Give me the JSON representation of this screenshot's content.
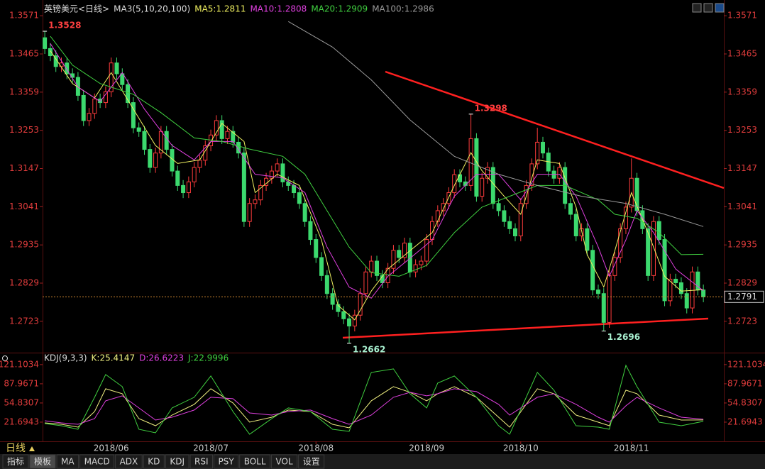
{
  "chart_data": [
    {
      "type": "candlestick",
      "title": "英镑美元<日线>",
      "subtitle": "MA3(5,10,20,100)",
      "up_color": "#ff3c3c",
      "down_color": "#3cd96e",
      "open": [
        1.351,
        1.348,
        1.346,
        1.343,
        1.344,
        1.341,
        1.34,
        1.335,
        1.328,
        1.33,
        1.334,
        1.333,
        1.336,
        1.344,
        1.341,
        1.338,
        1.333,
        1.326,
        1.325,
        1.32,
        1.315,
        1.319,
        1.325,
        1.32,
        1.314,
        1.31,
        1.308,
        1.311,
        1.315,
        1.317,
        1.321,
        1.324,
        1.328,
        1.323,
        1.325,
        1.322,
        1.319,
        1.3,
        1.305,
        1.306,
        1.31,
        1.312,
        1.314,
        1.316,
        1.311,
        1.31,
        1.308,
        1.305,
        1.3,
        1.295,
        1.29,
        1.285,
        1.28,
        1.277,
        1.275,
        1.273,
        1.271,
        1.274,
        1.28,
        1.286,
        1.289,
        1.285,
        1.283,
        1.287,
        1.292,
        1.29,
        1.294,
        1.286,
        1.288,
        1.289,
        1.295,
        1.3,
        1.303,
        1.305,
        1.308,
        1.313,
        1.311,
        1.31,
        1.323,
        1.307,
        1.312,
        1.315,
        1.305,
        1.303,
        1.3,
        1.298,
        1.296,
        1.305,
        1.31,
        1.316,
        1.322,
        1.319,
        1.314,
        1.312,
        1.315,
        1.305,
        1.302,
        1.296,
        1.298,
        1.292,
        1.281,
        1.28,
        1.272,
        1.285,
        1.29,
        1.298,
        1.304,
        1.312,
        1.303,
        1.298,
        1.285,
        1.3,
        1.295,
        1.278,
        1.284,
        1.283,
        1.28,
        1.276,
        1.286,
        1.281
      ],
      "high": [
        1.3528,
        1.3495,
        1.3475,
        1.3455,
        1.3455,
        1.3425,
        1.3415,
        1.3365,
        1.3315,
        1.3355,
        1.3355,
        1.3375,
        1.3455,
        1.3455,
        1.3425,
        1.3395,
        1.3345,
        1.3275,
        1.3265,
        1.3215,
        1.3205,
        1.3265,
        1.3265,
        1.3215,
        1.3155,
        1.3115,
        1.3125,
        1.3165,
        1.3185,
        1.3225,
        1.3255,
        1.3295,
        1.3295,
        1.3265,
        1.3265,
        1.3235,
        1.3205,
        1.3065,
        1.3075,
        1.3115,
        1.3135,
        1.3155,
        1.3175,
        1.3175,
        1.3125,
        1.3115,
        1.3095,
        1.3065,
        1.3015,
        1.2965,
        1.2915,
        1.2865,
        1.2815,
        1.2785,
        1.2765,
        1.2745,
        1.2755,
        1.2815,
        1.2875,
        1.2905,
        1.2905,
        1.2865,
        1.2885,
        1.2935,
        1.2935,
        1.2955,
        1.2955,
        1.2895,
        1.2905,
        1.2965,
        1.3015,
        1.3045,
        1.3065,
        1.3095,
        1.3145,
        1.3145,
        1.3125,
        1.3298,
        1.3245,
        1.3135,
        1.3165,
        1.3165,
        1.3065,
        1.3045,
        1.3015,
        1.2995,
        1.3065,
        1.3115,
        1.3175,
        1.326,
        1.3235,
        1.3205,
        1.3155,
        1.3165,
        1.3165,
        1.3065,
        1.3035,
        1.2995,
        1.2995,
        1.2935,
        1.2825,
        1.2815,
        1.2865,
        1.2915,
        1.2995,
        1.3055,
        1.3175,
        1.3135,
        1.3045,
        1.2995,
        1.3015,
        1.3015,
        1.2965,
        1.2855,
        1.2855,
        1.2845,
        1.2815,
        1.2875,
        1.2875,
        1.2825
      ],
      "low": [
        1.3465,
        1.3445,
        1.3415,
        1.3415,
        1.3395,
        1.3385,
        1.3335,
        1.3265,
        1.3265,
        1.3285,
        1.3315,
        1.3315,
        1.3345,
        1.3395,
        1.3365,
        1.3315,
        1.3245,
        1.3235,
        1.3185,
        1.3135,
        1.3135,
        1.3175,
        1.3185,
        1.3125,
        1.3085,
        1.3065,
        1.3065,
        1.3095,
        1.3135,
        1.3155,
        1.3195,
        1.3225,
        1.3215,
        1.3215,
        1.3205,
        1.3175,
        1.2985,
        1.2985,
        1.3035,
        1.3045,
        1.3085,
        1.3105,
        1.3125,
        1.3095,
        1.3085,
        1.3065,
        1.3035,
        1.2985,
        1.2935,
        1.2885,
        1.2835,
        1.2785,
        1.2755,
        1.2735,
        1.2715,
        1.2662,
        1.2695,
        1.2725,
        1.2785,
        1.2845,
        1.2835,
        1.2815,
        1.2815,
        1.2855,
        1.2885,
        1.2885,
        1.2845,
        1.2845,
        1.2865,
        1.2875,
        1.2935,
        1.2985,
        1.3015,
        1.3035,
        1.3065,
        1.3095,
        1.3085,
        1.3085,
        1.3055,
        1.3055,
        1.3105,
        1.3035,
        1.3015,
        1.2985,
        1.2965,
        1.2945,
        1.2945,
        1.3035,
        1.3085,
        1.3145,
        1.3175,
        1.3125,
        1.3105,
        1.3105,
        1.3035,
        1.3005,
        1.2945,
        1.2945,
        1.2905,
        1.2795,
        1.2785,
        1.2696,
        1.2705,
        1.2835,
        1.2885,
        1.2965,
        1.3025,
        1.3015,
        1.2965,
        1.2835,
        1.2835,
        1.2935,
        1.2765,
        1.2765,
        1.2815,
        1.2785,
        1.2745,
        1.2745,
        1.2795,
        1.2776
      ],
      "close": [
        1.348,
        1.346,
        1.343,
        1.344,
        1.341,
        1.34,
        1.335,
        1.328,
        1.33,
        1.334,
        1.333,
        1.336,
        1.344,
        1.341,
        1.338,
        1.333,
        1.326,
        1.325,
        1.32,
        1.315,
        1.319,
        1.325,
        1.32,
        1.314,
        1.31,
        1.308,
        1.311,
        1.315,
        1.317,
        1.321,
        1.324,
        1.328,
        1.323,
        1.325,
        1.322,
        1.319,
        1.3,
        1.305,
        1.306,
        1.31,
        1.312,
        1.314,
        1.316,
        1.311,
        1.31,
        1.308,
        1.305,
        1.3,
        1.295,
        1.29,
        1.285,
        1.28,
        1.277,
        1.275,
        1.273,
        1.271,
        1.274,
        1.28,
        1.286,
        1.289,
        1.285,
        1.283,
        1.287,
        1.292,
        1.29,
        1.294,
        1.286,
        1.288,
        1.289,
        1.295,
        1.3,
        1.303,
        1.305,
        1.308,
        1.313,
        1.311,
        1.31,
        1.323,
        1.307,
        1.312,
        1.315,
        1.305,
        1.303,
        1.3,
        1.298,
        1.296,
        1.305,
        1.31,
        1.316,
        1.322,
        1.319,
        1.314,
        1.312,
        1.315,
        1.305,
        1.302,
        1.296,
        1.298,
        1.292,
        1.281,
        1.28,
        1.272,
        1.285,
        1.29,
        1.298,
        1.304,
        1.312,
        1.303,
        1.298,
        1.285,
        1.3,
        1.295,
        1.278,
        1.284,
        1.283,
        1.28,
        1.276,
        1.286,
        1.281,
        1.2791
      ],
      "series": [
        {
          "name": "MA5:1.2811",
          "color": "#f0f060",
          "x": [
            1,
            5,
            9,
            12,
            16,
            20,
            24,
            28,
            32,
            36,
            38,
            42,
            46,
            50,
            53,
            56,
            59,
            62,
            66,
            70,
            74,
            77,
            79,
            83,
            86,
            89,
            93,
            96,
            98,
            101,
            103,
            106,
            109,
            112,
            115,
            119
          ],
          "values": [
            1.3474,
            1.3383,
            1.3343,
            1.3413,
            1.3312,
            1.3211,
            1.3161,
            1.3171,
            1.3272,
            1.3222,
            1.308,
            1.3131,
            1.31,
            1.2949,
            1.2767,
            1.2727,
            1.2807,
            1.2868,
            1.2919,
            1.2969,
            1.31,
            1.3191,
            1.3141,
            1.307,
            1.302,
            1.3171,
            1.3161,
            1.304,
            1.2908,
            1.2818,
            1.2919,
            1.308,
            1.2969,
            1.2848,
            1.2807,
            1.2811
          ]
        },
        {
          "name": "MA10:1.2808",
          "color": "#e040e0",
          "x": [
            1,
            6,
            10,
            14,
            18,
            23,
            27,
            30,
            34,
            38,
            43,
            47,
            51,
            55,
            59,
            62,
            66,
            70,
            74,
            78,
            82,
            86,
            89,
            93,
            96,
            100,
            102,
            105,
            107,
            110,
            114,
            119
          ],
          "values": [
            1.3494,
            1.3373,
            1.3333,
            1.3413,
            1.3312,
            1.3211,
            1.3171,
            1.3222,
            1.3222,
            1.3131,
            1.3121,
            1.308,
            1.2929,
            1.2818,
            1.2787,
            1.2848,
            1.2898,
            1.2949,
            1.307,
            1.3131,
            1.3131,
            1.306,
            1.3131,
            1.3131,
            1.307,
            1.2929,
            1.2848,
            1.2949,
            1.303,
            1.2969,
            1.2868,
            1.2808
          ]
        },
        {
          "name": "MA20:1.2909",
          "color": "#40d040",
          "x": [
            1,
            5,
            10,
            16,
            21,
            27,
            32,
            37,
            43,
            47,
            51,
            55,
            59,
            64,
            69,
            74,
            79,
            84,
            89,
            94,
            100,
            103,
            107,
            111,
            115,
            119
          ],
          "values": [
            1.3514,
            1.3434,
            1.3383,
            1.3353,
            1.3302,
            1.3232,
            1.3222,
            1.3201,
            1.3181,
            1.3131,
            1.303,
            1.2929,
            1.2858,
            1.2848,
            1.2878,
            1.2969,
            1.304,
            1.307,
            1.31,
            1.31,
            1.306,
            1.302,
            1.3009,
            1.2969,
            1.2908,
            1.2909
          ]
        },
        {
          "name": "MA100:1.2986",
          "color": "#9a9a9a",
          "x": [
            44,
            52,
            59,
            66,
            74,
            82,
            89,
            97,
            105,
            112,
            119
          ],
          "values": [
            1.3555,
            1.3484,
            1.3393,
            1.3282,
            1.3181,
            1.3131,
            1.31,
            1.307,
            1.305,
            1.302,
            1.2986
          ]
        }
      ],
      "annotations": [
        {
          "text": "1.3528",
          "x": 0,
          "y": 1.3528,
          "color": "#ff4040"
        },
        {
          "text": "1.2662",
          "x": 55,
          "y": 1.2662,
          "color": "#a8f0d0"
        },
        {
          "text": "1.3298",
          "x": 77,
          "y": 1.3298,
          "color": "#ff4040"
        },
        {
          "text": "1.2696",
          "x": 101,
          "y": 1.2696,
          "color": "#a8f0d0"
        }
      ],
      "last_price": 1.2791,
      "last_color": "#d08830",
      "xlim": [
        -0.4,
        122.7
      ],
      "ylim": [
        1.264,
        1.3595
      ],
      "yticks": [
        1.3571,
        1.3465,
        1.3359,
        1.3253,
        1.3147,
        1.3041,
        1.2935,
        1.2829,
        1.2723
      ],
      "xticks": [
        {
          "value": 12,
          "label": "2018/06"
        },
        {
          "value": 30,
          "label": "2018/07"
        },
        {
          "value": 49,
          "label": "2018/08"
        },
        {
          "value": 69,
          "label": "2018/09"
        },
        {
          "value": 86,
          "label": "2018/10"
        },
        {
          "value": 106,
          "label": "2018/11"
        }
      ]
    },
    {
      "type": "line",
      "title": "KDJ(9,3,3)",
      "series": [
        {
          "name": "K:25.4147",
          "color": "#f0f080",
          "x": [
            0,
            3,
            6,
            9,
            11,
            14,
            17,
            20,
            23,
            27,
            30,
            34,
            37,
            41,
            44,
            48,
            52,
            55,
            59,
            63,
            66,
            69,
            71,
            74,
            78,
            82,
            84,
            89,
            92,
            96,
            100,
            102,
            105,
            107,
            111,
            115,
            119
          ],
          "values": [
            20.47,
            18.01,
            13.1,
            40.1,
            79.38,
            70.78,
            27.83,
            15.56,
            33.97,
            52.38,
            79.38,
            54.83,
            21.69,
            30.29,
            42.56,
            40.1,
            18.01,
            11.87,
            58.51,
            83.06,
            73.24,
            58.51,
            70.78,
            83.06,
            64.65,
            30.29,
            13.1,
            79.38,
            70.78,
            33.97,
            21.69,
            15.56,
            76.92,
            70.78,
            33.97,
            25.38,
            25.41
          ]
        },
        {
          "name": "D:26.6223",
          "color": "#e040e0",
          "x": [
            0,
            3,
            6,
            9,
            11,
            14,
            17,
            20,
            23,
            27,
            30,
            34,
            37,
            41,
            44,
            48,
            52,
            55,
            59,
            63,
            66,
            69,
            71,
            74,
            78,
            82,
            84,
            89,
            92,
            96,
            100,
            102,
            105,
            107,
            111,
            115,
            119
          ],
          "values": [
            24.15,
            20.47,
            18.01,
            27.83,
            58.51,
            67.1,
            46.24,
            25.38,
            30.29,
            42.56,
            64.65,
            62.2,
            37.65,
            33.97,
            40.1,
            42.56,
            27.83,
            18.01,
            33.97,
            64.65,
            73.24,
            67.1,
            70.78,
            79.38,
            74.47,
            52.38,
            33.97,
            64.65,
            70.78,
            52.38,
            30.29,
            21.69,
            49.92,
            64.65,
            46.24,
            30.29,
            26.62
          ]
        },
        {
          "name": "J:22.9996",
          "color": "#40d040",
          "x": [
            0,
            3,
            6,
            9,
            11,
            14,
            17,
            20,
            23,
            27,
            30,
            34,
            37,
            41,
            44,
            48,
            52,
            55,
            59,
            63,
            66,
            69,
            71,
            74,
            78,
            82,
            84,
            89,
            92,
            96,
            100,
            102,
            105,
            107,
            111,
            115,
            119
          ],
          "values": [
            19.24,
            15.56,
            9.42,
            64.65,
            103.92,
            83.06,
            9.42,
            3.29,
            46.24,
            64.65,
            101.47,
            40.1,
            0.83,
            27.83,
            46.24,
            40.1,
            9.42,
            5.74,
            107.6,
            113.74,
            70.78,
            46.24,
            89.2,
            101.47,
            64.65,
            15.56,
            0.83,
            107.6,
            76.92,
            15.56,
            13.1,
            9.42,
            119.88,
            83.06,
            21.69,
            15.56,
            23.0
          ]
        }
      ],
      "xlim": [
        -0.4,
        122.7
      ],
      "ylim": [
        -9,
        132
      ],
      "yticks": [
        121.1034,
        87.9671,
        54.8307,
        21.6943
      ]
    }
  ],
  "toolbar": {
    "period": "日线",
    "tabs": [
      "指标",
      "模板",
      "MA",
      "MACD",
      "ADX",
      "KD",
      "KDJ",
      "RSI",
      "PSY",
      "BOLL",
      "VOL",
      "设置"
    ]
  }
}
